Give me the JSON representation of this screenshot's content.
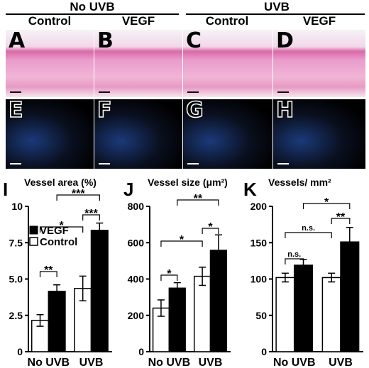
{
  "header": {
    "left": "No UVB",
    "right": "UVB"
  },
  "columns": [
    "Control",
    "VEGF",
    "Control",
    "VEGF"
  ],
  "panels": {
    "he": [
      "A",
      "B",
      "C",
      "D"
    ],
    "if": [
      "E",
      "F",
      "G",
      "H"
    ]
  },
  "chart_data": [
    {
      "type": "bar",
      "panel_letter": "I",
      "title": "Vessel area (%)",
      "categories": [
        "No UVB",
        "UVB"
      ],
      "series": [
        {
          "name": "Control",
          "values": [
            2.15,
            4.35
          ],
          "errors": [
            0.4,
            0.85
          ]
        },
        {
          "name": "VEGF",
          "values": [
            4.15,
            8.35
          ],
          "errors": [
            0.45,
            0.5
          ]
        }
      ],
      "ylim": [
        0,
        10
      ],
      "yticks": [
        "0",
        "2.5",
        "5.0",
        "7.5",
        "10"
      ],
      "significance": [
        "**",
        "*",
        "***",
        "***"
      ],
      "legend": "top-left"
    },
    {
      "type": "bar",
      "panel_letter": "J",
      "title": "Vessel size (μm²)",
      "categories": [
        "No UVB",
        "UVB"
      ],
      "series": [
        {
          "name": "Control",
          "values": [
            240,
            415
          ],
          "errors": [
            45,
            50
          ]
        },
        {
          "name": "VEGF",
          "values": [
            350,
            558
          ],
          "errors": [
            30,
            85
          ]
        }
      ],
      "ylim": [
        0,
        800
      ],
      "yticks": [
        "0",
        "200",
        "400",
        "600",
        "800"
      ],
      "significance": [
        "*",
        "*",
        "*",
        "**"
      ]
    },
    {
      "type": "bar",
      "panel_letter": "K",
      "title": "Vessels/ mm²",
      "categories": [
        "No UVB",
        "UVB"
      ],
      "series": [
        {
          "name": "Control",
          "values": [
            102,
            102
          ],
          "errors": [
            6,
            6
          ]
        },
        {
          "name": "VEGF",
          "values": [
            119,
            151
          ],
          "errors": [
            8,
            20
          ]
        }
      ],
      "ylim": [
        0,
        200
      ],
      "yticks": [
        "0",
        "50",
        "100",
        "150",
        "200"
      ],
      "significance": [
        "n.s.",
        "n.s.",
        "**",
        "*"
      ]
    }
  ]
}
